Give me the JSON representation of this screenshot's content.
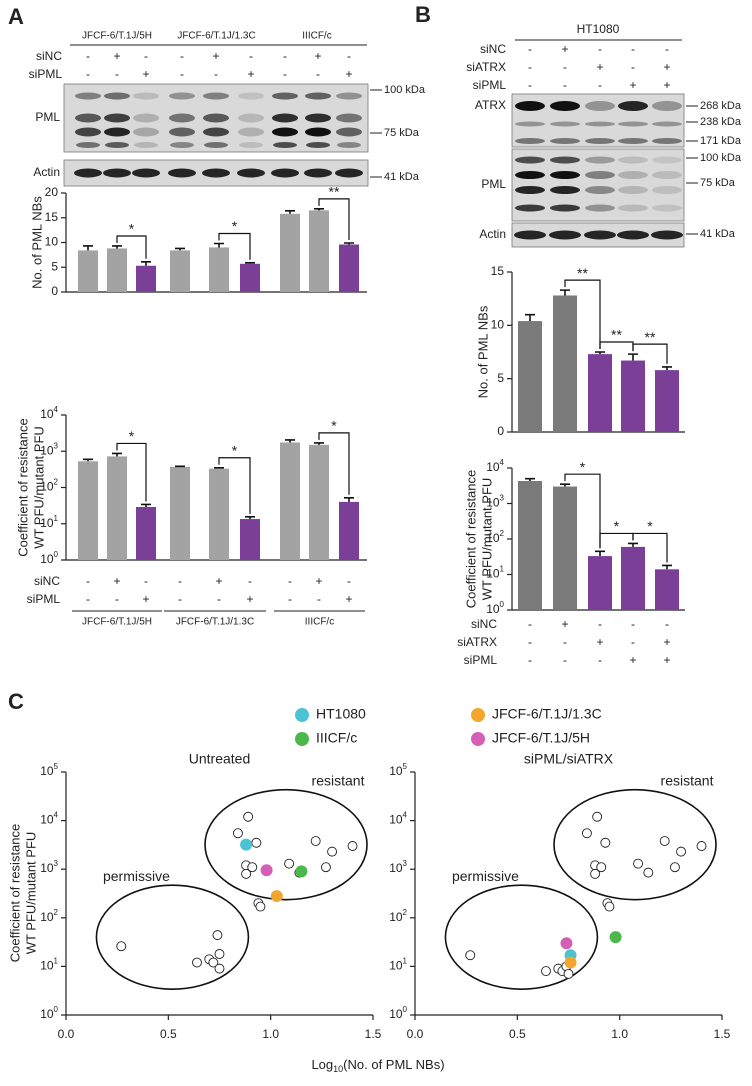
{
  "panels": [
    "A",
    "B",
    "C"
  ],
  "blot_a": {
    "groups": [
      "JFCF-6/T.1J/5H",
      "JFCF-6/T.1J/1.3C",
      "IIICF/c"
    ],
    "conditions": [
      {
        "name": "siNC",
        "signs": [
          "-",
          "+",
          "-",
          "-",
          "+",
          "-",
          "-",
          "+",
          "-"
        ]
      },
      {
        "name": "siPML",
        "signs": [
          "-",
          "-",
          "+",
          "-",
          "-",
          "+",
          "-",
          "-",
          "+"
        ]
      }
    ],
    "bands": [
      "PML",
      "Actin"
    ],
    "markers": [
      "100 kDa",
      "75 kDa",
      "41 kDa"
    ]
  },
  "blot_b": {
    "cell_line": "HT1080",
    "conditions": [
      {
        "name": "siNC",
        "signs": [
          "-",
          "+",
          "-",
          "-",
          "-"
        ]
      },
      {
        "name": "siATRX",
        "signs": [
          "-",
          "-",
          "+",
          "-",
          "+"
        ]
      },
      {
        "name": "siPML",
        "signs": [
          "-",
          "-",
          "-",
          "+",
          "+"
        ]
      }
    ],
    "bands": [
      "ATRX",
      "PML",
      "Actin"
    ],
    "markers": [
      "268 kDa",
      "238 kDa",
      "171 kDa",
      "100 kDa",
      "75 kDa",
      "41 kDa"
    ]
  },
  "chart_data": [
    {
      "type": "bar",
      "ylabel": "No. of PML NBs",
      "ylim": [
        0,
        20
      ],
      "yticks": [
        0,
        5,
        10,
        15,
        20
      ],
      "values": [
        8.4,
        8.8,
        5.3,
        8.4,
        9.0,
        5.7,
        15.8,
        16.5,
        9.6
      ],
      "errors": [
        0.9,
        0.5,
        0.8,
        0.4,
        0.8,
        0.2,
        0.6,
        0.3,
        0.3
      ],
      "colors": [
        "#a3a3a3",
        "#a3a3a3",
        "#7b3f98",
        "#a3a3a3",
        "#a3a3a3",
        "#7b3f98",
        "#a3a3a3",
        "#a3a3a3",
        "#7b3f98"
      ],
      "significance": [
        {
          "bars": [
            1,
            2
          ],
          "label": "*"
        },
        {
          "bars": [
            4,
            5
          ],
          "label": "*"
        },
        {
          "bars": [
            7,
            8
          ],
          "label": "**"
        }
      ]
    },
    {
      "type": "bar",
      "log_scale": true,
      "ylabel": [
        "Coefficient of resistance",
        "WT PFU/mutant PFU"
      ],
      "ylim": [
        1,
        10000
      ],
      "yticks": [
        {
          "value": 1,
          "label": "10",
          "exponent": "0"
        },
        {
          "value": 10,
          "label": "10",
          "exponent": "1"
        },
        {
          "value": 100,
          "label": "10",
          "exponent": "2"
        },
        {
          "value": 1000,
          "label": "10",
          "exponent": "3"
        },
        {
          "value": 10000,
          "label": "10",
          "exponent": "4"
        }
      ],
      "values": [
        530,
        720,
        29,
        370,
        330,
        13.5,
        1750,
        1500,
        40
      ],
      "errors": [
        70,
        150,
        5,
        15,
        20,
        2,
        300,
        200,
        12
      ],
      "colors": [
        "#a3a3a3",
        "#a3a3a3",
        "#7b3f98",
        "#a3a3a3",
        "#a3a3a3",
        "#7b3f98",
        "#a3a3a3",
        "#a3a3a3",
        "#7b3f98"
      ],
      "significance": [
        {
          "bars": [
            1,
            2
          ],
          "label": "*"
        },
        {
          "bars": [
            4,
            5
          ],
          "label": "*"
        },
        {
          "bars": [
            7,
            8
          ],
          "label": "*"
        }
      ],
      "conditions": [
        {
          "name": "siNC",
          "signs": [
            "-",
            "+",
            "-",
            "-",
            "+",
            "-",
            "-",
            "+",
            "-"
          ]
        },
        {
          "name": "siPML",
          "signs": [
            "-",
            "-",
            "+",
            "-",
            "-",
            "+",
            "-",
            "-",
            "+"
          ]
        }
      ],
      "groups": [
        "JFCF-6/T.1J/5H",
        "JFCF-6/T.1J/1.3C",
        "IIICF/c"
      ]
    },
    {
      "type": "bar",
      "ylabel": "No. of PML NBs",
      "ylim": [
        0,
        15
      ],
      "yticks": [
        0,
        5,
        10,
        15
      ],
      "values": [
        10.4,
        12.8,
        7.3,
        6.7,
        5.8
      ],
      "errors": [
        0.6,
        0.5,
        0.2,
        0.6,
        0.3
      ],
      "colors": [
        "#7a7a7a",
        "#7a7a7a",
        "#7b3f98",
        "#7b3f98",
        "#7b3f98"
      ],
      "significance": [
        {
          "bars": [
            1,
            2
          ],
          "label": "**"
        },
        {
          "bars": [
            2,
            3
          ],
          "label": "**"
        },
        {
          "bars": [
            3,
            4
          ],
          "label": "**"
        }
      ]
    },
    {
      "type": "bar",
      "log_scale": true,
      "ylabel": [
        "Coefficient of resistance",
        "WT PFU/mutant PFU"
      ],
      "ylim": [
        1,
        10000
      ],
      "yticks": [
        {
          "value": 1,
          "label": "10",
          "exponent": "0"
        },
        {
          "value": 10,
          "label": "10",
          "exponent": "1"
        },
        {
          "value": 100,
          "label": "10",
          "exponent": "2"
        },
        {
          "value": 1000,
          "label": "10",
          "exponent": "3"
        },
        {
          "value": 10000,
          "label": "10",
          "exponent": "4"
        }
      ],
      "values": [
        4300,
        3000,
        33,
        60,
        14
      ],
      "errors": [
        700,
        500,
        12,
        15,
        4
      ],
      "colors": [
        "#7a7a7a",
        "#7a7a7a",
        "#7b3f98",
        "#7b3f98",
        "#7b3f98"
      ],
      "significance": [
        {
          "bars": [
            1,
            2
          ],
          "label": "*"
        },
        {
          "bars": [
            2,
            3
          ],
          "label": "*"
        },
        {
          "bars": [
            3,
            4
          ],
          "label": "*"
        }
      ],
      "conditions": [
        {
          "name": "siNC",
          "signs": [
            "-",
            "+",
            "-",
            "-",
            "-"
          ]
        },
        {
          "name": "siATRX",
          "signs": [
            "-",
            "-",
            "+",
            "-",
            "+"
          ]
        },
        {
          "name": "siPML",
          "signs": [
            "-",
            "-",
            "-",
            "+",
            "+"
          ]
        }
      ]
    },
    {
      "type": "scatter",
      "title": "Untreated",
      "log_scale": true,
      "xlim": [
        0,
        1.5
      ],
      "xticks": [
        {
          "value": 0,
          "label": "0.0"
        },
        {
          "value": 0.5,
          "label": "0.5"
        },
        {
          "value": 1,
          "label": "1.0"
        },
        {
          "value": 1.5,
          "label": "1.5"
        }
      ],
      "ylim": [
        1,
        100000
      ],
      "yticks": [
        {
          "value": 1,
          "label": "10",
          "exponent": "0"
        },
        {
          "value": 10,
          "label": "10",
          "exponent": "1"
        },
        {
          "value": 100,
          "label": "10",
          "exponent": "2"
        },
        {
          "value": 1000,
          "label": "10",
          "exponent": "3"
        },
        {
          "value": 10000,
          "label": "10",
          "exponent": "4"
        },
        {
          "value": 100000,
          "label": "10",
          "exponent": "5"
        }
      ],
      "annotations": [
        "resistant",
        "permissive"
      ],
      "series": [
        {
          "color": "#ffffff",
          "x": [
            0.27,
            0.64,
            0.7,
            0.72,
            0.74,
            0.75,
            0.75,
            0.84,
            0.89,
            0.93,
            0.88,
            0.91,
            0.88,
            0.94,
            0.95,
            1.09,
            1.14,
            1.22,
            1.27,
            1.3,
            1.4
          ],
          "values": [
            26,
            12,
            14,
            12,
            44,
            18,
            9,
            5500,
            12000,
            3500,
            1200,
            1100,
            800,
            200,
            170,
            1300,
            850,
            3800,
            1100,
            2300,
            3000
          ]
        },
        {
          "color": "#4cc3d3",
          "x": [
            0.88
          ],
          "values": [
            3200
          ]
        },
        {
          "color": "#f2a62f",
          "x": [
            1.03
          ],
          "values": [
            280
          ]
        },
        {
          "color": "#4cb74a",
          "x": [
            1.15
          ],
          "values": [
            900
          ]
        },
        {
          "color": "#d460b5",
          "x": [
            0.98
          ],
          "values": [
            950
          ]
        }
      ]
    },
    {
      "type": "scatter",
      "title": "siPML/siATRX",
      "log_scale": true,
      "xlim": [
        0,
        1.5
      ],
      "xticks": [
        {
          "value": 0,
          "label": "0.0"
        },
        {
          "value": 0.5,
          "label": "0.5"
        },
        {
          "value": 1,
          "label": "1.0"
        },
        {
          "value": 1.5,
          "label": "1.5"
        }
      ],
      "ylim": [
        1,
        100000
      ],
      "yticks": [
        {
          "value": 1,
          "label": "10",
          "exponent": "0"
        },
        {
          "value": 10,
          "label": "10",
          "exponent": "1"
        },
        {
          "value": 100,
          "label": "10",
          "exponent": "2"
        },
        {
          "value": 1000,
          "label": "10",
          "exponent": "3"
        },
        {
          "value": 10000,
          "label": "10",
          "exponent": "4"
        },
        {
          "value": 100000,
          "label": "10",
          "exponent": "5"
        }
      ],
      "annotations": [
        "resistant",
        "permissive"
      ],
      "series": [
        {
          "color": "#ffffff",
          "x": [
            0.27,
            0.64,
            0.7,
            0.72,
            0.74,
            0.75,
            0.84,
            0.89,
            0.93,
            0.88,
            0.91,
            0.88,
            0.94,
            0.95,
            1.09,
            1.14,
            1.22,
            1.27,
            1.3,
            1.4
          ],
          "values": [
            17,
            8,
            9,
            8,
            10,
            7,
            5500,
            12000,
            3500,
            1200,
            1100,
            800,
            200,
            170,
            1300,
            850,
            3800,
            1100,
            2300,
            3000
          ]
        },
        {
          "color": "#4cc3d3",
          "x": [
            0.76
          ],
          "values": [
            17
          ]
        },
        {
          "color": "#f2a62f",
          "x": [
            0.76
          ],
          "values": [
            12
          ]
        },
        {
          "color": "#4cb74a",
          "x": [
            0.98
          ],
          "values": [
            40
          ]
        },
        {
          "color": "#d460b5",
          "x": [
            0.74
          ],
          "values": [
            30
          ]
        }
      ]
    }
  ],
  "panel_c": {
    "legend": [
      {
        "name": "HT1080",
        "color": "#4cc3d3"
      },
      {
        "name": "JFCF-6/T.1J/1.3C",
        "color": "#f2a62f"
      },
      {
        "name": "IIICF/c",
        "color": "#4cb74a"
      },
      {
        "name": "JFCF-6/T.1J/5H",
        "color": "#d460b5"
      }
    ],
    "ylabel": [
      "Coefficient of resistance",
      "WT PFU/mutant PFU"
    ],
    "xlabel": [
      "Log",
      "10",
      "(No. of PML NBs)"
    ]
  }
}
